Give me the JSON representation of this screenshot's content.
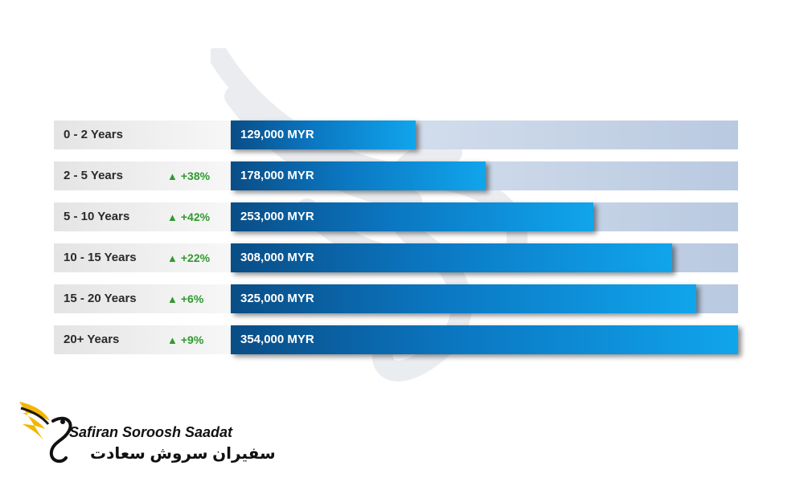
{
  "chart_data": {
    "type": "bar",
    "orientation": "horizontal",
    "categories": [
      "0 - 2 Years",
      "2 - 5 Years",
      "5 - 10 Years",
      "10 - 15 Years",
      "15 - 20 Years",
      "20+ Years"
    ],
    "values": [
      129000,
      178000,
      253000,
      308000,
      325000,
      354000
    ],
    "value_labels": [
      "129,000 MYR",
      "178,000 MYR",
      "253,000 MYR",
      "308,000 MYR",
      "325,000 MYR",
      "354,000 MYR"
    ],
    "growth_labels": [
      "",
      "+38%",
      "+42%",
      "+22%",
      "+6%",
      "+9%"
    ],
    "xlim": [
      0,
      354000
    ],
    "grid": false,
    "bar_color": "#0b77c2",
    "track_color": "#c9d6e8",
    "growth_color": "#2e9a2e"
  },
  "logo": {
    "name_en": "Safiran Soroosh Saadat",
    "name_fa": "سفیران سروش سعادت",
    "icon": "wing-swan-logo-icon",
    "accent_color": "#f2b705"
  },
  "watermark": {
    "icon": "swan-watermark-icon"
  }
}
